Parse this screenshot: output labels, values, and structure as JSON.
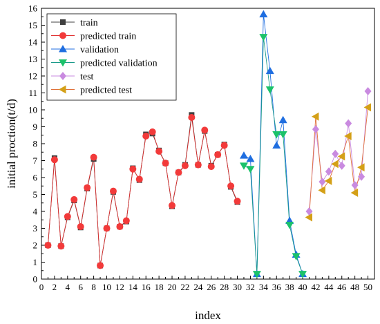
{
  "chart_data": {
    "type": "line",
    "xlabel": "index",
    "ylabel": "initial proction(t/d)",
    "xlim": [
      0,
      51
    ],
    "ylim": [
      0,
      16
    ],
    "x_ticks": [
      0,
      2,
      4,
      6,
      8,
      10,
      12,
      14,
      16,
      18,
      20,
      22,
      24,
      26,
      28,
      30,
      32,
      34,
      36,
      38,
      40,
      42,
      44,
      46,
      48,
      50
    ],
    "y_ticks": [
      0,
      1,
      2,
      3,
      4,
      5,
      6,
      7,
      8,
      9,
      10,
      11,
      12,
      13,
      14,
      15,
      16
    ],
    "legend_position": "top-left",
    "series": [
      {
        "name": "train",
        "marker": "square",
        "color": "#3f3f3f",
        "x": [
          1,
          2,
          3,
          4,
          5,
          6,
          7,
          8,
          9,
          10,
          11,
          12,
          13,
          14,
          15,
          16,
          17,
          18,
          19,
          20,
          21,
          22,
          23,
          24,
          25,
          26,
          27,
          28,
          29,
          30
        ],
        "values": [
          2.0,
          7.15,
          1.95,
          3.65,
          4.65,
          3.05,
          5.35,
          7.1,
          0.8,
          3.0,
          5.15,
          3.1,
          3.4,
          6.55,
          5.85,
          8.55,
          8.6,
          7.6,
          6.85,
          4.3,
          6.3,
          6.75,
          9.7,
          6.75,
          8.75,
          6.7,
          7.35,
          7.95,
          5.45,
          4.55
        ]
      },
      {
        "name": "predicted train",
        "marker": "circle",
        "color": "#f23a3a",
        "line_color": "#e03030",
        "x": [
          1,
          2,
          3,
          4,
          5,
          6,
          7,
          8,
          9,
          10,
          11,
          12,
          13,
          14,
          15,
          16,
          17,
          18,
          19,
          20,
          21,
          22,
          23,
          24,
          25,
          26,
          27,
          28,
          29,
          30
        ],
        "values": [
          2.0,
          7.05,
          1.95,
          3.7,
          4.7,
          3.1,
          5.4,
          7.2,
          0.8,
          3.0,
          5.2,
          3.1,
          3.45,
          6.5,
          5.9,
          8.45,
          8.7,
          7.55,
          6.85,
          4.35,
          6.3,
          6.7,
          9.55,
          6.75,
          8.8,
          6.65,
          7.35,
          7.9,
          5.5,
          4.6
        ]
      },
      {
        "name": "validation",
        "marker": "triangle-up",
        "color": "#1f6ee0",
        "x": [
          31,
          32,
          33,
          34,
          35,
          36,
          37,
          38,
          39,
          40
        ],
        "values": [
          7.3,
          7.1,
          0.3,
          15.65,
          12.3,
          7.9,
          9.4,
          3.45,
          1.45,
          0.3
        ]
      },
      {
        "name": "predicted validation",
        "marker": "triangle-down",
        "color": "#1bc26a",
        "line_color": "#1a9a8a",
        "x": [
          31,
          32,
          33,
          34,
          35,
          36,
          37,
          38,
          39,
          40
        ],
        "values": [
          6.7,
          6.5,
          0.3,
          14.3,
          11.2,
          8.55,
          8.55,
          3.2,
          1.35,
          0.3
        ]
      },
      {
        "name": "test",
        "marker": "diamond",
        "color": "#c98ae0",
        "x": [
          41,
          42,
          43,
          44,
          45,
          46,
          47,
          48,
          49,
          50
        ],
        "values": [
          4.0,
          8.85,
          5.75,
          6.35,
          7.4,
          6.7,
          9.2,
          5.55,
          6.05,
          11.1
        ]
      },
      {
        "name": "predicted test",
        "marker": "triangle-left",
        "color": "#d4a017",
        "line_color": "#e0703a",
        "x": [
          41,
          42,
          43,
          44,
          45,
          46,
          47,
          48,
          49,
          50
        ],
        "values": [
          3.65,
          9.6,
          5.25,
          5.8,
          6.8,
          7.25,
          8.45,
          5.1,
          6.6,
          10.15
        ]
      }
    ]
  }
}
